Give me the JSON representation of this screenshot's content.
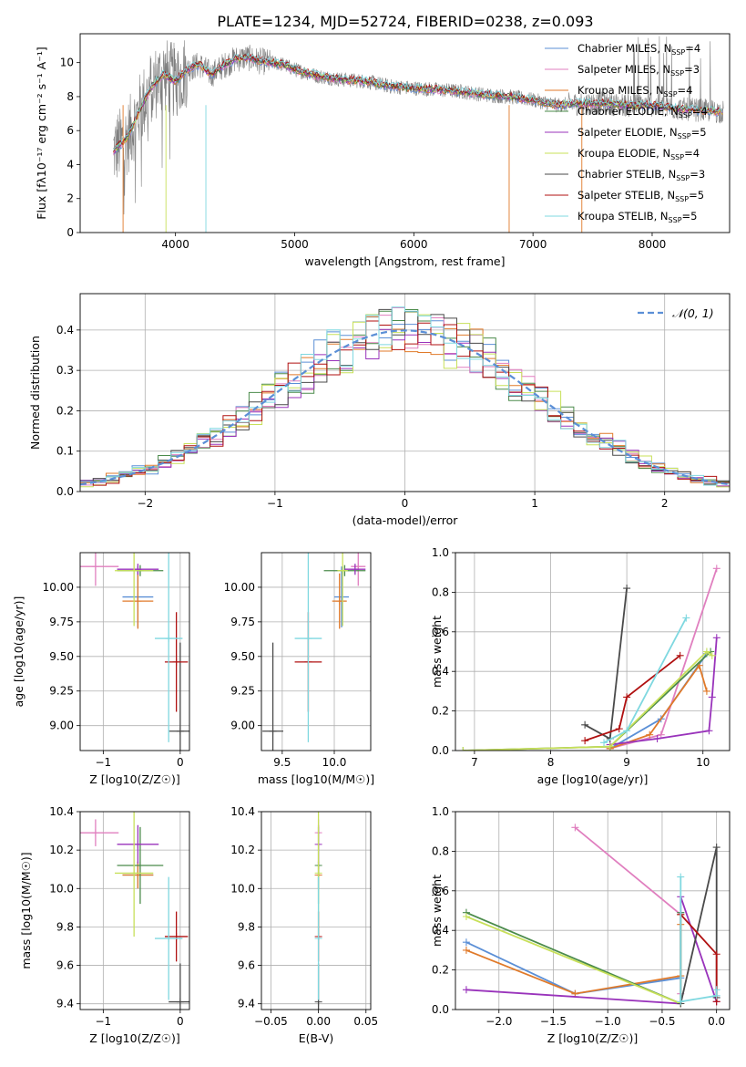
{
  "title": "PLATE=1234, MJD=52724, FIBERID=0238, z=0.093",
  "colors": {
    "cm": "#5b8fd6",
    "sm": "#e07fbf",
    "km": "#e07a2a",
    "ce": "#4b8b4b",
    "se": "#9933bb",
    "ke": "#c8e05a",
    "cs": "#4a4a4a",
    "ss": "#b01010",
    "ks": "#7fd8e0",
    "normal": "#5b8fd6",
    "data": "#808080"
  },
  "legend_spec": [
    {
      "base": "Chabrier MILES, N",
      "sub": "SSP",
      "tail": "=4"
    },
    {
      "base": "Salpeter MILES, N",
      "sub": "SSP",
      "tail": "=3"
    },
    {
      "base": "Kroupa MILES, N",
      "sub": "SSP",
      "tail": "=4"
    },
    {
      "base": "Chabrier ELODIE, N",
      "sub": "SSP",
      "tail": "=4"
    },
    {
      "base": "Salpeter ELODIE, N",
      "sub": "SSP",
      "tail": "=5"
    },
    {
      "base": "Kroupa ELODIE, N",
      "sub": "SSP",
      "tail": "=4"
    },
    {
      "base": "Chabrier STELIB, N",
      "sub": "SSP",
      "tail": "=3"
    },
    {
      "base": "Salpeter STELIB, N",
      "sub": "SSP",
      "tail": "=5"
    },
    {
      "base": "Kroupa STELIB, N",
      "sub": "SSP",
      "tail": "=5"
    }
  ],
  "chart_data": [
    {
      "id": "spectrum",
      "type": "line",
      "title": "PLATE=1234, MJD=52724, FIBERID=0238, z=0.093",
      "xlabel": "wavelength [Angstrom, rest frame]",
      "ylabel": "Flux [fλ10⁻¹⁷ erg cm⁻² s⁻¹ A⁻¹]",
      "xlim": [
        3200,
        8650
      ],
      "ylim": [
        0,
        11.7
      ],
      "xticks": [
        4000,
        5000,
        6000,
        7000,
        8000
      ],
      "yticks": [
        0,
        2,
        4,
        6,
        8,
        10
      ],
      "grid": false,
      "legend_position": "upper right",
      "data_x": [
        3480,
        3600,
        3700,
        3800,
        3900,
        4000,
        4100,
        4200,
        4300,
        4400,
        4500,
        4600,
        4700,
        4800,
        4900,
        5000,
        5200,
        5400,
        5600,
        5800,
        6000,
        6200,
        6400,
        6600,
        6800,
        7000,
        7200,
        7400,
        7600,
        7800,
        8000,
        8200,
        8400,
        8600
      ],
      "data_y": [
        4.8,
        5.6,
        7.2,
        8.6,
        9.3,
        8.9,
        9.6,
        9.9,
        9.3,
        9.8,
        10.2,
        10.3,
        10.1,
        10.0,
        9.9,
        9.6,
        9.2,
        9.0,
        8.9,
        8.6,
        8.5,
        8.4,
        8.3,
        8.1,
        8.0,
        7.8,
        7.5,
        7.6,
        7.6,
        7.5,
        7.5,
        7.3,
        7.2,
        7.1
      ],
      "series": [
        {
          "name": "Chabrier MILES, NSSP=4",
          "key": "cm"
        },
        {
          "name": "Salpeter MILES, NSSP=3",
          "key": "sm"
        },
        {
          "name": "Kroupa MILES, NSSP=4",
          "key": "km"
        },
        {
          "name": "Chabrier ELODIE, NSSP=4",
          "key": "ce"
        },
        {
          "name": "Salpeter ELODIE, NSSP=5",
          "key": "se"
        },
        {
          "name": "Kroupa ELODIE, NSSP=4",
          "key": "ke"
        },
        {
          "name": "Chabrier STELIB, NSSP=3",
          "key": "cs"
        },
        {
          "name": "Salpeter STELIB, NSSP=5",
          "key": "ss"
        },
        {
          "name": "Kroupa STELIB, NSSP=5",
          "key": "ks"
        }
      ]
    },
    {
      "id": "residuals",
      "type": "histogram",
      "xlabel": "(data-model)/error",
      "ylabel": "Normed distribution",
      "xlim": [
        -2.5,
        2.5
      ],
      "ylim": [
        0,
        0.49
      ],
      "xticks": [
        -2,
        -1,
        0,
        1,
        2
      ],
      "yticks": [
        0.0,
        0.1,
        0.2,
        0.3,
        0.4
      ],
      "grid": true,
      "bin_width": 0.1,
      "reference_curve": "N(0,1)",
      "legend_entry": "𝒩(0, 1)",
      "legend_position": "upper right",
      "legend_line_style": "dashed"
    },
    {
      "id": "age_vs_Z",
      "type": "errorbar",
      "xlabel": "Z [log10(Z/Z☉)]",
      "ylabel": "age [log10(age/yr)]",
      "xlim": [
        -1.3,
        0.12
      ],
      "ylim": [
        8.82,
        10.25
      ],
      "xticks": [
        -1,
        0
      ],
      "yticks": [
        9.0,
        9.25,
        9.5,
        9.75,
        10.0
      ],
      "grid": true,
      "points": [
        {
          "key": "cm",
          "x": -0.55,
          "y": 9.93,
          "xerr": 0.2,
          "yerr": 0.22
        },
        {
          "key": "sm",
          "x": -1.1,
          "y": 10.15,
          "xerr": 0.3,
          "yerr": 0.14
        },
        {
          "key": "km",
          "x": -0.55,
          "y": 9.9,
          "xerr": 0.2,
          "yerr": 0.2
        },
        {
          "key": "ce",
          "x": -0.52,
          "y": 10.12,
          "xerr": 0.3,
          "yerr": 0.04
        },
        {
          "key": "se",
          "x": -0.55,
          "y": 10.13,
          "xerr": 0.27,
          "yerr": 0.04
        },
        {
          "key": "ke",
          "x": -0.6,
          "y": 10.12,
          "xerr": 0.25,
          "yerr": 0.4
        },
        {
          "key": "cs",
          "x": 0.0,
          "y": 8.96,
          "xerr": 0.15,
          "yerr": 0.64
        },
        {
          "key": "ss",
          "x": -0.05,
          "y": 9.46,
          "xerr": 0.15,
          "yerr": 0.36
        },
        {
          "key": "ks",
          "x": -0.15,
          "y": 9.63,
          "xerr": 0.18,
          "yerr": 0.75
        }
      ]
    },
    {
      "id": "age_vs_mass",
      "type": "errorbar",
      "xlabel": "mass [log10(M/M☉)]",
      "ylabel": "",
      "xlim": [
        9.3,
        10.35
      ],
      "ylim": [
        8.82,
        10.25
      ],
      "xticks": [
        9.5,
        10.0
      ],
      "yticks": [
        9.0,
        9.25,
        9.5,
        9.75,
        10.0
      ],
      "grid": true,
      "points": [
        {
          "key": "cm",
          "x": 10.07,
          "y": 9.93,
          "xerr": 0.07,
          "yerr": 0.22
        },
        {
          "key": "sm",
          "x": 10.23,
          "y": 10.15,
          "xerr": 0.07,
          "yerr": 0.14
        },
        {
          "key": "km",
          "x": 10.05,
          "y": 9.9,
          "xerr": 0.07,
          "yerr": 0.2
        },
        {
          "key": "ce",
          "x": 10.1,
          "y": 10.12,
          "xerr": 0.2,
          "yerr": 0.04
        },
        {
          "key": "se",
          "x": 10.2,
          "y": 10.13,
          "xerr": 0.1,
          "yerr": 0.04
        },
        {
          "key": "ke",
          "x": 10.08,
          "y": 10.12,
          "xerr": 0.05,
          "yerr": 0.4
        },
        {
          "key": "cs",
          "x": 9.41,
          "y": 8.96,
          "xerr": 0.1,
          "yerr": 0.64
        },
        {
          "key": "ss",
          "x": 9.75,
          "y": 9.46,
          "xerr": 0.13,
          "yerr": 0.36
        },
        {
          "key": "ks",
          "x": 9.75,
          "y": 9.63,
          "xerr": 0.13,
          "yerr": 0.75
        }
      ]
    },
    {
      "id": "weight_vs_age",
      "type": "line",
      "xlabel": "age [log10(age/yr)]",
      "ylabel": "mass weight",
      "xlim": [
        6.75,
        10.35
      ],
      "ylim": [
        0,
        1.0
      ],
      "xticks": [
        7,
        8,
        9,
        10
      ],
      "yticks": [
        0.0,
        0.2,
        0.4,
        0.6,
        0.8,
        1.0
      ],
      "grid": true,
      "series": [
        {
          "key": "cm",
          "x": [
            8.78,
            9.45,
            10.05
          ],
          "y": [
            0.01,
            0.16,
            0.49
          ]
        },
        {
          "key": "sm",
          "x": [
            8.78,
            9.45,
            10.18
          ],
          "y": [
            0.01,
            0.08,
            0.92
          ]
        },
        {
          "key": "km",
          "x": [
            8.78,
            9.3,
            9.95,
            10.05
          ],
          "y": [
            0.01,
            0.08,
            0.43,
            0.3
          ]
        },
        {
          "key": "ce",
          "x": [
            6.85,
            8.78,
            10.1
          ],
          "y": [
            0.0,
            0.02,
            0.5
          ]
        },
        {
          "key": "se",
          "x": [
            8.78,
            9.4,
            10.08,
            10.12,
            10.18
          ],
          "y": [
            0.03,
            0.06,
            0.1,
            0.27,
            0.57
          ]
        },
        {
          "key": "ke",
          "x": [
            6.85,
            8.78,
            10.05,
            10.12
          ],
          "y": [
            0.0,
            0.02,
            0.5,
            0.48
          ]
        },
        {
          "key": "cs",
          "x": [
            8.45,
            8.78,
            9.0
          ],
          "y": [
            0.13,
            0.06,
            0.82
          ]
        },
        {
          "key": "ss",
          "x": [
            8.45,
            8.9,
            9.0,
            9.7
          ],
          "y": [
            0.05,
            0.11,
            0.27,
            0.48
          ]
        },
        {
          "key": "ks",
          "x": [
            8.7,
            9.0,
            9.78
          ],
          "y": [
            0.04,
            0.1,
            0.67
          ]
        }
      ]
    },
    {
      "id": "mass_vs_Z",
      "type": "errorbar",
      "xlabel": "Z [log10(Z/Z☉)]",
      "ylabel": "mass [log10(M/M☉)]",
      "xlim": [
        -1.3,
        0.12
      ],
      "ylim": [
        9.37,
        10.4
      ],
      "xticks": [
        -1,
        0
      ],
      "yticks": [
        9.4,
        9.6,
        9.8,
        10.0,
        10.2,
        10.4
      ],
      "grid": true,
      "points": [
        {
          "key": "cm",
          "x": -0.55,
          "y": 10.07,
          "xerr": 0.2,
          "yerr": 0.07
        },
        {
          "key": "sm",
          "x": -1.1,
          "y": 10.29,
          "xerr": 0.3,
          "yerr": 0.07
        },
        {
          "key": "km",
          "x": -0.55,
          "y": 10.07,
          "xerr": 0.2,
          "yerr": 0.07
        },
        {
          "key": "ce",
          "x": -0.52,
          "y": 10.12,
          "xerr": 0.3,
          "yerr": 0.2
        },
        {
          "key": "se",
          "x": -0.55,
          "y": 10.23,
          "xerr": 0.27,
          "yerr": 0.1
        },
        {
          "key": "ke",
          "x": -0.6,
          "y": 10.08,
          "xerr": 0.25,
          "yerr": 0.33
        },
        {
          "key": "cs",
          "x": 0.0,
          "y": 9.41,
          "xerr": 0.15,
          "yerr": 0.2
        },
        {
          "key": "ss",
          "x": -0.05,
          "y": 9.75,
          "xerr": 0.15,
          "yerr": 0.13
        },
        {
          "key": "ks",
          "x": -0.15,
          "y": 9.74,
          "xerr": 0.18,
          "yerr": 0.32
        }
      ]
    },
    {
      "id": "mass_vs_EBV",
      "type": "errorbar",
      "xlabel": "E(B-V)",
      "ylabel": "",
      "xlim": [
        -0.06,
        0.055
      ],
      "ylim": [
        9.37,
        10.4
      ],
      "xticks": [
        -0.05,
        0.0,
        0.05
      ],
      "yticks": [
        9.4,
        9.6,
        9.8,
        10.0,
        10.2,
        10.4
      ],
      "grid": true,
      "points": [
        {
          "key": "cm",
          "x": 0.0,
          "y": 10.07,
          "xerr": 0.0,
          "yerr": 0.07
        },
        {
          "key": "sm",
          "x": 0.0,
          "y": 10.29,
          "xerr": 0.0,
          "yerr": 0.07
        },
        {
          "key": "km",
          "x": 0.0,
          "y": 10.07,
          "xerr": 0.0,
          "yerr": 0.07
        },
        {
          "key": "ce",
          "x": 0.0,
          "y": 10.12,
          "xerr": 0.0,
          "yerr": 0.2
        },
        {
          "key": "se",
          "x": 0.0,
          "y": 10.23,
          "xerr": 0.0,
          "yerr": 0.1
        },
        {
          "key": "ke",
          "x": 0.0,
          "y": 10.08,
          "xerr": 0.0,
          "yerr": 0.33
        },
        {
          "key": "cs",
          "x": 0.0,
          "y": 9.41,
          "xerr": 0.0,
          "yerr": 0.2
        },
        {
          "key": "ss",
          "x": 0.0,
          "y": 9.75,
          "xerr": 0.0,
          "yerr": 0.13
        },
        {
          "key": "ks",
          "x": 0.0,
          "y": 9.74,
          "xerr": 0.0,
          "yerr": 0.32
        }
      ]
    },
    {
      "id": "weight_vs_Z",
      "type": "line",
      "xlabel": "Z [log10(Z/Z☉)]",
      "ylabel": "mass weight",
      "xlim": [
        -2.4,
        0.12
      ],
      "ylim": [
        0,
        1.0
      ],
      "xticks": [
        -2.0,
        -1.5,
        -1.0,
        -0.5,
        0.0
      ],
      "yticks": [
        0.0,
        0.2,
        0.4,
        0.6,
        0.8,
        1.0
      ],
      "grid": true,
      "series": [
        {
          "key": "cm",
          "x": [
            -2.3,
            -1.3,
            -0.33,
            -0.33
          ],
          "y": [
            0.34,
            0.08,
            0.16,
            0.49
          ]
        },
        {
          "key": "sm",
          "x": [
            -1.3,
            -0.33,
            -0.33
          ],
          "y": [
            0.92,
            0.48,
            0.08
          ]
        },
        {
          "key": "km",
          "x": [
            -2.3,
            -1.3,
            -0.33,
            -0.33
          ],
          "y": [
            0.3,
            0.08,
            0.17,
            0.43
          ]
        },
        {
          "key": "ce",
          "x": [
            -2.3,
            -0.33,
            -0.33
          ],
          "y": [
            0.49,
            0.03,
            0.49
          ]
        },
        {
          "key": "se",
          "x": [
            -2.3,
            -0.33,
            -0.33,
            0.0
          ],
          "y": [
            0.1,
            0.03,
            0.57,
            0.04
          ]
        },
        {
          "key": "ke",
          "x": [
            -2.3,
            -0.33,
            -0.33
          ],
          "y": [
            0.47,
            0.03,
            0.48
          ]
        },
        {
          "key": "cs",
          "x": [
            -0.33,
            0.0,
            0.0
          ],
          "y": [
            0.03,
            0.82,
            0.06
          ]
        },
        {
          "key": "ss",
          "x": [
            -0.33,
            0.0,
            0.0
          ],
          "y": [
            0.48,
            0.28,
            0.04
          ]
        },
        {
          "key": "ks",
          "x": [
            -0.33,
            -0.33,
            0.0,
            0.0
          ],
          "y": [
            0.67,
            0.04,
            0.07,
            0.1
          ]
        }
      ]
    }
  ]
}
